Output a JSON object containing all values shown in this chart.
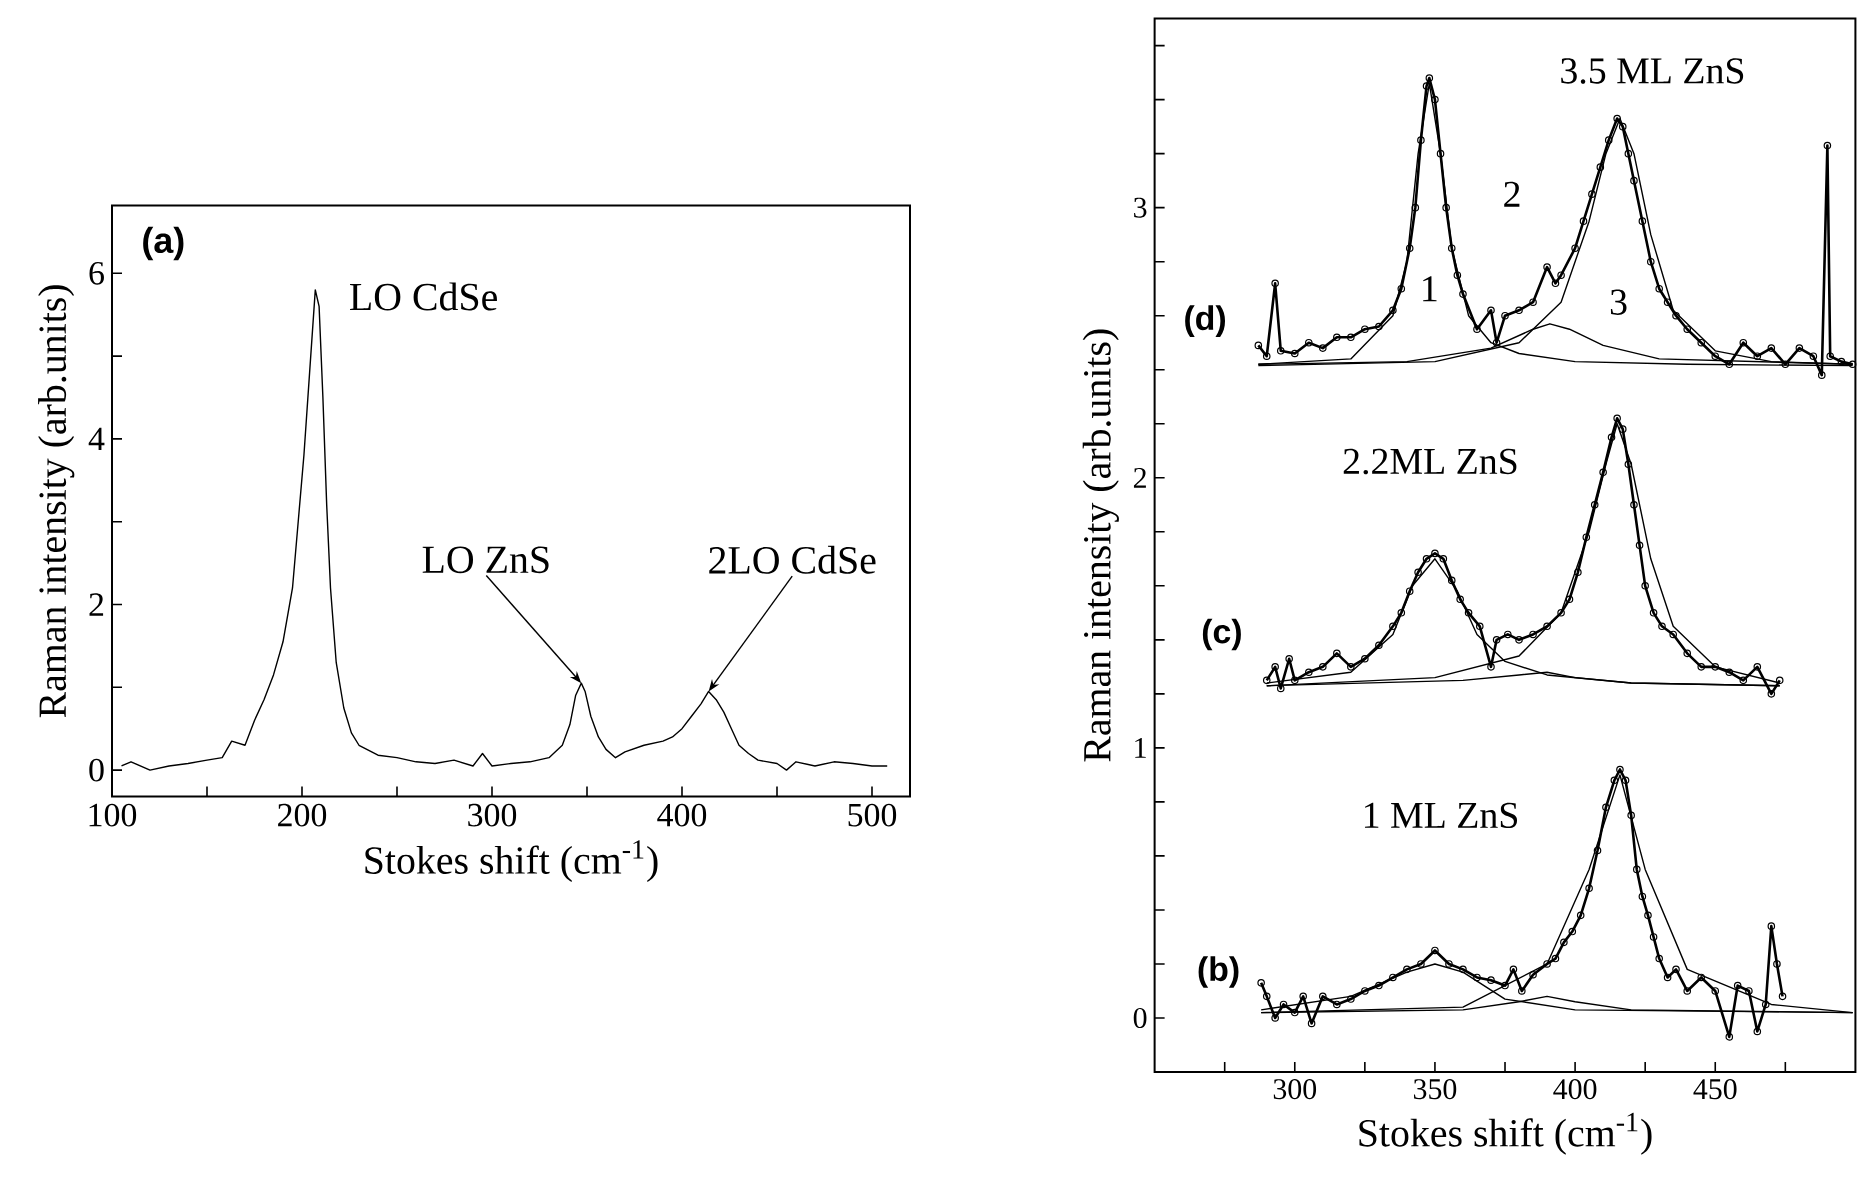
{
  "chart_data": [
    {
      "type": "line",
      "xlabel": "Stokes shift (cm$^{-1}$)",
      "ylabel": "Raman intensity (arb.units)",
      "xlim": [
        100,
        520
      ],
      "ylim": [
        -0.32,
        6.82
      ],
      "xticks": [
        100,
        {
          "value": 150,
          "label": null
        },
        200,
        {
          "value": 250,
          "label": null
        },
        300,
        {
          "value": 350,
          "label": null
        },
        400,
        {
          "value": 450,
          "label": null
        },
        500
      ],
      "yticks": [
        0,
        {
          "value": 1,
          "label": null
        },
        2,
        {
          "value": 3,
          "label": null
        },
        4,
        {
          "value": 5,
          "label": null
        },
        6
      ],
      "annotations": [
        "(a)",
        "LO CdSe",
        {
          "text": "LO ZnS",
          "x": 347,
          "y": 1.05
        },
        {
          "text": "2LO CdSe",
          "x": 414,
          "y": 0.95
        }
      ],
      "series": [
        {
          "color": "#000000",
          "marker": "none",
          "x": [
            105,
            110,
            120,
            130,
            140,
            150,
            158,
            163,
            170,
            175,
            180,
            185,
            190,
            195,
            198,
            201,
            204,
            207,
            209,
            211,
            213,
            215,
            218,
            222,
            226,
            230,
            240,
            250,
            260,
            270,
            280,
            290,
            295,
            300,
            310,
            320,
            330,
            337,
            341,
            344,
            347,
            349,
            352,
            356,
            360,
            365,
            370,
            380,
            390,
            395,
            400,
            405,
            410,
            414,
            418,
            422,
            426,
            430,
            435,
            440,
            450,
            455,
            460,
            470,
            480,
            490,
            500,
            508
          ],
          "values": [
            0.05,
            0.1,
            0.0,
            0.05,
            0.08,
            0.12,
            0.15,
            0.35,
            0.3,
            0.6,
            0.85,
            1.15,
            1.55,
            2.2,
            3.0,
            3.8,
            4.8,
            5.8,
            5.6,
            4.5,
            3.2,
            2.2,
            1.3,
            0.75,
            0.45,
            0.3,
            0.18,
            0.15,
            0.1,
            0.08,
            0.12,
            0.05,
            0.2,
            0.05,
            0.08,
            0.1,
            0.15,
            0.3,
            0.55,
            0.9,
            1.05,
            0.95,
            0.65,
            0.4,
            0.25,
            0.15,
            0.22,
            0.3,
            0.35,
            0.4,
            0.5,
            0.65,
            0.8,
            0.95,
            0.85,
            0.7,
            0.5,
            0.3,
            0.2,
            0.12,
            0.08,
            0.0,
            0.1,
            0.05,
            0.1,
            0.08,
            0.05,
            0.05
          ]
        }
      ]
    },
    {
      "type": "line",
      "xlabel": "Stokes shift (cm$^{-1}$)",
      "ylabel": "Raman intensity (arb.units)",
      "xlim": [
        250,
        500
      ],
      "ylim": [
        -0.2,
        3.7
      ],
      "xticks": [
        {
          "value": 275,
          "label": null
        },
        300,
        {
          "value": 325,
          "label": null
        },
        350,
        {
          "value": 375,
          "label": null
        },
        400,
        {
          "value": 425,
          "label": null
        },
        450,
        {
          "value": 475,
          "label": null
        }
      ],
      "yticks": [
        0,
        {
          "value": 0.2,
          "label": null
        },
        {
          "value": 0.4,
          "label": null
        },
        {
          "value": 0.6,
          "label": null
        },
        {
          "value": 0.8,
          "label": null
        },
        1,
        {
          "value": 1.2,
          "label": null
        },
        {
          "value": 1.4,
          "label": null
        },
        {
          "value": 1.6,
          "label": null
        },
        {
          "value": 1.8,
          "label": null
        },
        2,
        {
          "value": 2.2,
          "label": null
        },
        {
          "value": 2.4,
          "label": null
        },
        {
          "value": 2.6,
          "label": null
        },
        {
          "value": 2.8,
          "label": null
        },
        3,
        {
          "value": 3.2,
          "label": null
        },
        {
          "value": 3.4,
          "label": null
        },
        {
          "value": 3.6,
          "label": null
        }
      ],
      "annotations": [
        "3.5 ML ZnS",
        "2",
        "1",
        "3",
        "(d)",
        "2.2ML ZnS",
        "(c)",
        "1 ML ZnS",
        "(b)"
      ],
      "series": [
        {
          "color": "#000000",
          "marker": "circle",
          "x": [
            287,
            290,
            293,
            295,
            300,
            305,
            310,
            315,
            320,
            325,
            330,
            335,
            338,
            341,
            343,
            345,
            347,
            348,
            350,
            352,
            354,
            356,
            358,
            360,
            365,
            370,
            372,
            375,
            380,
            385,
            390,
            393,
            395,
            400,
            403,
            406,
            409,
            412,
            415,
            417,
            419,
            421,
            424,
            427,
            430,
            433,
            436,
            440,
            445,
            450,
            455,
            460,
            465,
            470,
            475,
            480,
            485,
            488,
            490,
            491,
            495,
            499
          ],
          "values": [
            2.49,
            2.45,
            2.72,
            2.47,
            2.46,
            2.5,
            2.48,
            2.52,
            2.52,
            2.55,
            2.56,
            2.62,
            2.7,
            2.85,
            3.0,
            3.25,
            3.45,
            3.48,
            3.4,
            3.2,
            3.0,
            2.85,
            2.75,
            2.68,
            2.55,
            2.62,
            2.5,
            2.6,
            2.62,
            2.65,
            2.78,
            2.72,
            2.75,
            2.85,
            2.95,
            3.05,
            3.15,
            3.25,
            3.33,
            3.3,
            3.2,
            3.1,
            2.95,
            2.8,
            2.7,
            2.65,
            2.6,
            2.55,
            2.5,
            2.45,
            2.42,
            2.5,
            2.45,
            2.48,
            2.42,
            2.48,
            2.45,
            2.38,
            3.23,
            2.45,
            2.43,
            2.42
          ]
        },
        {
          "color": "#000000",
          "marker": "none",
          "x": [
            287,
            320,
            335,
            340,
            344,
            348,
            352,
            356,
            362,
            370,
            380,
            400,
            440,
            499
          ],
          "values": [
            2.42,
            2.44,
            2.6,
            2.8,
            3.2,
            3.46,
            3.2,
            2.85,
            2.6,
            2.5,
            2.46,
            2.43,
            2.42,
            2.415
          ]
        },
        {
          "color": "#000000",
          "marker": "none",
          "x": [
            287,
            340,
            370,
            385,
            391,
            398,
            410,
            430,
            499
          ],
          "values": [
            2.42,
            2.43,
            2.48,
            2.55,
            2.57,
            2.55,
            2.49,
            2.44,
            2.42
          ]
        },
        {
          "color": "#000000",
          "marker": "none",
          "x": [
            287,
            350,
            380,
            395,
            405,
            411,
            416,
            421,
            427,
            435,
            450,
            470,
            499
          ],
          "values": [
            2.415,
            2.43,
            2.5,
            2.65,
            2.95,
            3.2,
            3.33,
            3.2,
            2.9,
            2.62,
            2.47,
            2.43,
            2.42
          ]
        },
        {
          "color": "#000000",
          "marker": "circle",
          "x": [
            290,
            293,
            295,
            298,
            300,
            305,
            310,
            315,
            320,
            325,
            330,
            335,
            338,
            341,
            344,
            347,
            350,
            353,
            356,
            359,
            362,
            366,
            370,
            372,
            376,
            380,
            385,
            390,
            395,
            398,
            401,
            404,
            407,
            410,
            413,
            415,
            417,
            419,
            421,
            423,
            425,
            428,
            431,
            435,
            440,
            445,
            450,
            455,
            460,
            465,
            470,
            473
          ],
          "values": [
            1.25,
            1.3,
            1.22,
            1.33,
            1.25,
            1.28,
            1.3,
            1.35,
            1.3,
            1.33,
            1.38,
            1.45,
            1.5,
            1.58,
            1.65,
            1.7,
            1.72,
            1.7,
            1.62,
            1.55,
            1.5,
            1.45,
            1.3,
            1.4,
            1.42,
            1.4,
            1.42,
            1.45,
            1.5,
            1.55,
            1.65,
            1.78,
            1.9,
            2.02,
            2.15,
            2.22,
            2.18,
            2.05,
            1.9,
            1.75,
            1.6,
            1.5,
            1.45,
            1.42,
            1.35,
            1.3,
            1.3,
            1.28,
            1.25,
            1.3,
            1.2,
            1.25
          ]
        },
        {
          "color": "#000000",
          "marker": "none",
          "x": [
            290,
            320,
            335,
            342,
            350,
            358,
            365,
            375,
            390,
            420,
            473
          ],
          "values": [
            1.24,
            1.28,
            1.42,
            1.6,
            1.7,
            1.58,
            1.42,
            1.32,
            1.27,
            1.24,
            1.23
          ]
        },
        {
          "color": "#000000",
          "marker": "none",
          "x": [
            290,
            360,
            380,
            390,
            400,
            420,
            473
          ],
          "values": [
            1.23,
            1.25,
            1.27,
            1.28,
            1.26,
            1.24,
            1.23
          ]
        },
        {
          "color": "#000000",
          "marker": "none",
          "x": [
            290,
            350,
            380,
            395,
            405,
            411,
            415,
            420,
            427,
            435,
            450,
            473
          ],
          "values": [
            1.23,
            1.26,
            1.34,
            1.5,
            1.8,
            2.05,
            2.2,
            2.05,
            1.7,
            1.45,
            1.3,
            1.24
          ]
        },
        {
          "color": "#000000",
          "marker": "circle",
          "x": [
            288,
            290,
            293,
            296,
            300,
            303,
            306,
            310,
            315,
            320,
            325,
            330,
            335,
            340,
            345,
            350,
            355,
            360,
            365,
            370,
            375,
            378,
            381,
            385,
            390,
            393,
            396,
            399,
            402,
            405,
            408,
            411,
            414,
            416,
            418,
            420,
            422,
            424,
            426,
            428,
            430,
            433,
            436,
            440,
            445,
            450,
            455,
            458,
            462,
            465,
            468,
            470,
            472,
            474
          ],
          "values": [
            0.13,
            0.08,
            0.0,
            0.05,
            0.02,
            0.08,
            -0.02,
            0.08,
            0.05,
            0.07,
            0.1,
            0.12,
            0.15,
            0.18,
            0.2,
            0.25,
            0.2,
            0.18,
            0.15,
            0.14,
            0.12,
            0.18,
            0.1,
            0.16,
            0.2,
            0.22,
            0.28,
            0.32,
            0.38,
            0.48,
            0.62,
            0.78,
            0.88,
            0.92,
            0.88,
            0.75,
            0.55,
            0.45,
            0.38,
            0.3,
            0.22,
            0.15,
            0.18,
            0.1,
            0.15,
            0.1,
            -0.07,
            0.12,
            0.1,
            -0.05,
            0.05,
            0.34,
            0.2,
            0.08
          ]
        },
        {
          "color": "#000000",
          "marker": "none",
          "x": [
            288,
            320,
            340,
            350,
            360,
            375,
            400,
            499
          ],
          "values": [
            0.03,
            0.08,
            0.17,
            0.2,
            0.17,
            0.07,
            0.03,
            0.02
          ]
        },
        {
          "color": "#000000",
          "marker": "none",
          "x": [
            288,
            360,
            380,
            390,
            400,
            420,
            499
          ],
          "values": [
            0.02,
            0.03,
            0.06,
            0.08,
            0.06,
            0.03,
            0.02
          ]
        },
        {
          "color": "#000000",
          "marker": "none",
          "x": [
            288,
            360,
            390,
            405,
            416,
            425,
            440,
            470,
            499
          ],
          "values": [
            0.02,
            0.04,
            0.2,
            0.55,
            0.9,
            0.55,
            0.18,
            0.05,
            0.02
          ]
        }
      ]
    }
  ]
}
